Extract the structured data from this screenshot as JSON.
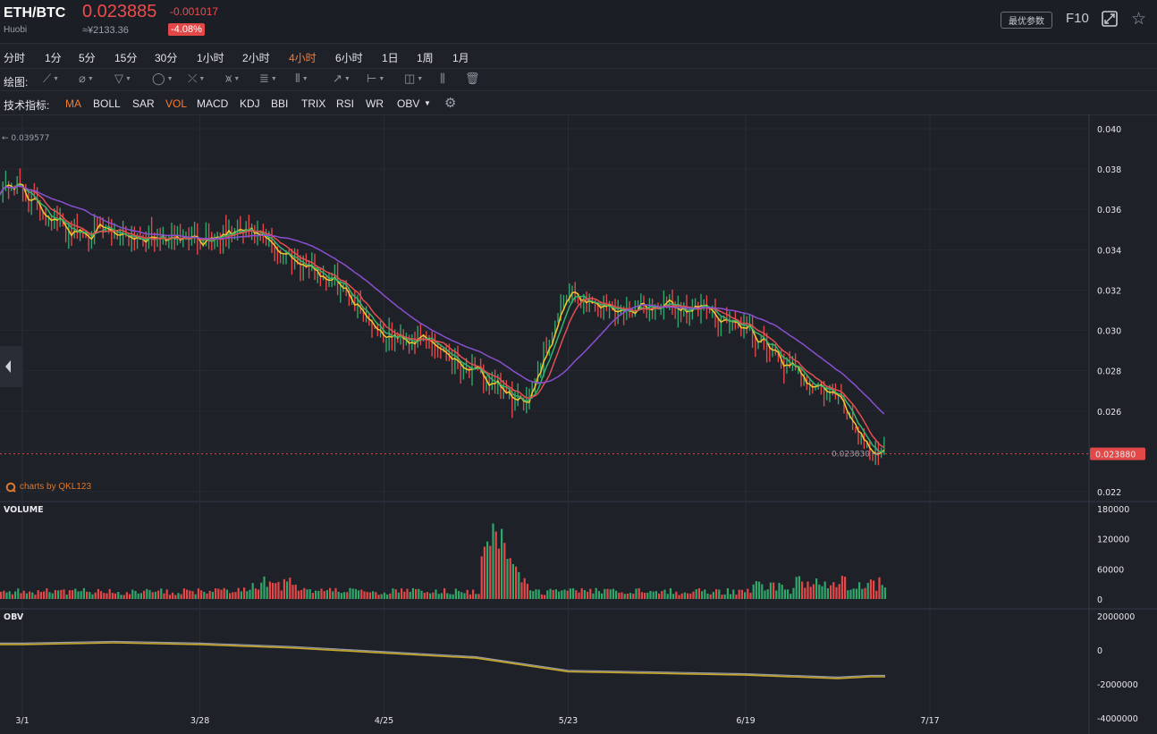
{
  "header": {
    "symbol": "ETH/BTC",
    "exchange": "Huobi",
    "price": "0.023885",
    "change": "-0.001017",
    "cny_price": "≈¥2133.36",
    "change_pct": "-4.08%",
    "params_button": "最优参数",
    "f10": "F10"
  },
  "timeframes": [
    "分时",
    "1分",
    "5分",
    "15分",
    "30分",
    "1小时",
    "2小时",
    "4小时",
    "6小时",
    "1日",
    "1周",
    "1月"
  ],
  "active_timeframe": "4小时",
  "drawing": {
    "label": "绘图:",
    "tools": [
      "trend-line-icon",
      "ray-line-icon",
      "channel-icon",
      "circle-icon",
      "cross-line-icon",
      "pattern-icon",
      "fibonacci-icon",
      "grid-icon",
      "arrow-icon",
      "measure-icon",
      "comment-icon",
      "indicator-chart-icon",
      "trash-icon"
    ]
  },
  "indicators": {
    "label": "技术指标:",
    "items": [
      "MA",
      "BOLL",
      "SAR",
      "VOL",
      "MACD",
      "KDJ",
      "BBI",
      "TRIX",
      "RSI",
      "WR",
      "OBV"
    ],
    "active": [
      "MA",
      "VOL"
    ]
  },
  "colors": {
    "up": "#2fa66a",
    "down": "#e24848",
    "accent": "#f47d33",
    "ma_short": "#f3c72e",
    "ma_mid": "#35b36e",
    "ma_long": "#e05050",
    "ma_slow": "#8a4fd0",
    "obv": "#c8a82a",
    "obv2": "#9a9da6"
  },
  "watermark": "charts by QKL123",
  "chart_data": [
    {
      "type": "line",
      "title": "",
      "y_ticks": [
        "0.040",
        "0.038",
        "0.036",
        "0.034",
        "0.032",
        "0.030",
        "0.028",
        "0.026",
        "0.022"
      ],
      "ylim": [
        0.0215,
        0.0408
      ],
      "x_ticks": [
        "3/1",
        "3/28",
        "4/25",
        "5/23",
        "6/19",
        "7/17"
      ],
      "x": [
        "3/1",
        "3/8",
        "3/15",
        "3/22",
        "3/28",
        "4/4",
        "4/11",
        "4/18",
        "4/25",
        "5/2",
        "5/9",
        "5/16",
        "5/23",
        "5/30",
        "6/6",
        "6/13",
        "6/19",
        "6/26",
        "7/3",
        "7/8"
      ],
      "series": [
        {
          "values": [
            0.0368,
            0.0349,
            0.0349,
            0.0345,
            0.0346,
            0.0349,
            0.0336,
            0.0323,
            0.0297,
            0.0295,
            0.0278,
            0.0262,
            0.0318,
            0.031,
            0.0312,
            0.031,
            0.03,
            0.028,
            0.0266,
            0.024
          ]
        }
      ],
      "max_label": "0.039577",
      "current_label": "0.023830",
      "price_tag": "0.023880",
      "current_value": 0.02388
    },
    {
      "type": "bar",
      "title": "VOLUME",
      "y_ticks": [
        "180000",
        "120000",
        "60000",
        "0"
      ],
      "ylim": [
        0,
        180000
      ],
      "peak": 170000
    },
    {
      "type": "line",
      "title": "OBV",
      "y_ticks": [
        "2000000",
        "0",
        "-2000000",
        "-4000000"
      ],
      "ylim": [
        -4000000,
        2000000
      ],
      "x": [
        "3/1",
        "3/15",
        "3/28",
        "4/11",
        "4/25",
        "5/9",
        "5/23",
        "6/6",
        "6/19",
        "7/3",
        "7/8"
      ],
      "series": [
        {
          "values": [
            400000,
            500000,
            400000,
            200000,
            -100000,
            -400000,
            -1200000,
            -1300000,
            -1400000,
            -1600000,
            -1500000
          ]
        }
      ]
    }
  ]
}
